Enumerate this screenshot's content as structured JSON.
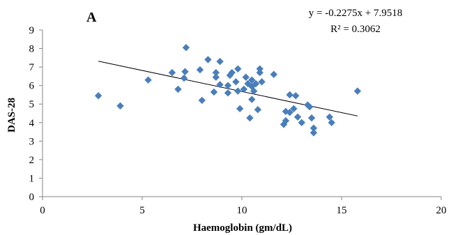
{
  "chart_data": {
    "type": "scatter",
    "panel_label": "A",
    "xlabel": "Haemoglobin (gm/dL)",
    "ylabel": "DAS-28",
    "xlim": [
      0,
      20
    ],
    "ylim": [
      0,
      9
    ],
    "xticks": [
      0,
      5,
      10,
      15,
      20
    ],
    "yticks": [
      0,
      1,
      2,
      3,
      4,
      5,
      6,
      7,
      8,
      9
    ],
    "grid": false,
    "marker": "diamond",
    "marker_color": "#4A7EBB",
    "trendline": {
      "slope": -0.2275,
      "intercept": 7.9518,
      "x_range": [
        2.8,
        15.8
      ],
      "color": "#000000",
      "equation": "y = -0.2275x + 7.9518",
      "r_squared": "R² = 0.3062"
    },
    "points": [
      [
        2.8,
        5.45
      ],
      [
        3.9,
        4.9
      ],
      [
        5.3,
        6.3
      ],
      [
        6.5,
        6.7
      ],
      [
        6.8,
        5.8
      ],
      [
        7.1,
        6.4
      ],
      [
        7.15,
        6.75
      ],
      [
        7.2,
        8.05
      ],
      [
        7.9,
        6.85
      ],
      [
        8.0,
        5.2
      ],
      [
        8.3,
        7.4
      ],
      [
        8.6,
        5.65
      ],
      [
        8.7,
        6.45
      ],
      [
        8.7,
        6.7
      ],
      [
        8.9,
        7.3
      ],
      [
        8.9,
        6.05
      ],
      [
        9.3,
        5.6
      ],
      [
        9.3,
        6.0
      ],
      [
        9.4,
        6.55
      ],
      [
        9.5,
        6.7
      ],
      [
        9.7,
        6.2
      ],
      [
        9.8,
        6.9
      ],
      [
        9.8,
        5.7
      ],
      [
        9.9,
        4.75
      ],
      [
        10.1,
        5.8
      ],
      [
        10.2,
        6.45
      ],
      [
        10.3,
        6.1
      ],
      [
        10.4,
        4.25
      ],
      [
        10.5,
        5.95
      ],
      [
        10.5,
        6.3
      ],
      [
        10.5,
        5.25
      ],
      [
        10.6,
        5.7
      ],
      [
        10.7,
        6.1
      ],
      [
        10.8,
        4.7
      ],
      [
        10.9,
        6.7
      ],
      [
        10.9,
        6.9
      ],
      [
        11.0,
        6.2
      ],
      [
        11.6,
        6.6
      ],
      [
        12.1,
        3.9
      ],
      [
        12.2,
        4.1
      ],
      [
        12.2,
        4.6
      ],
      [
        12.4,
        5.5
      ],
      [
        12.4,
        4.55
      ],
      [
        12.6,
        4.75
      ],
      [
        12.7,
        5.45
      ],
      [
        12.8,
        4.3
      ],
      [
        13.0,
        4.0
      ],
      [
        13.3,
        4.95
      ],
      [
        13.4,
        4.85
      ],
      [
        13.5,
        4.25
      ],
      [
        13.6,
        3.7
      ],
      [
        13.6,
        3.45
      ],
      [
        14.4,
        4.3
      ],
      [
        14.5,
        4.0
      ],
      [
        15.8,
        5.7
      ]
    ]
  }
}
